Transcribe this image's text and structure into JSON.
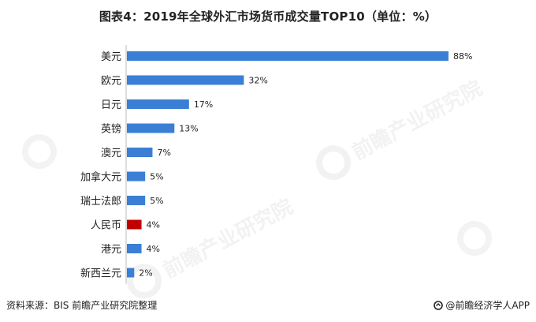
{
  "chart_data": {
    "type": "bar",
    "orientation": "horizontal",
    "title": "图表4：2019年全球外汇市场货币成交量TOP10（单位：%）",
    "categories": [
      "美元",
      "欧元",
      "日元",
      "英镑",
      "澳元",
      "加拿大元",
      "瑞士法郎",
      "人民币",
      "港元",
      "新西兰元"
    ],
    "values": [
      88,
      32,
      17,
      13,
      7,
      5,
      5,
      4,
      4,
      2
    ],
    "value_labels": [
      "88%",
      "32%",
      "17%",
      "13%",
      "7%",
      "5%",
      "5%",
      "4%",
      "4%",
      "2%"
    ],
    "colors": {
      "default": "#3a7fd5",
      "highlight": "#c00000",
      "axis": "#bbbbbb",
      "text": "#222222"
    },
    "highlight_category": "人民币",
    "xlim": [
      0,
      88
    ],
    "grid": false,
    "legend": "none"
  },
  "footer": {
    "source": "资料来源：BIS 前瞻产业研究院整理",
    "brand": "@前瞻经济学人APP",
    "brand_icon": "qianzhan-logo-icon"
  },
  "watermark": {
    "text": "前瞻产业研究院"
  }
}
